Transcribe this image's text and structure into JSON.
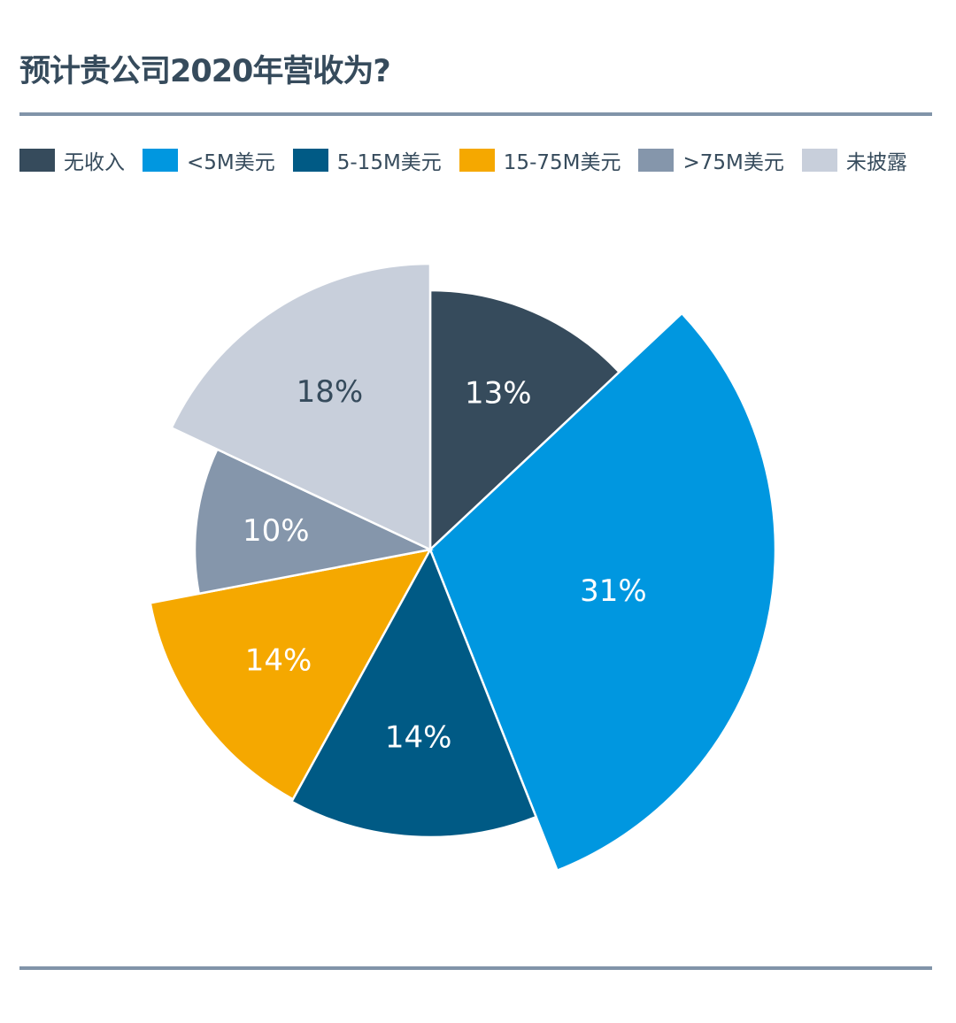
{
  "chart_data": {
    "type": "pie",
    "title": "预计贵公司2020年营收为?",
    "legend_position": "top",
    "categories": [
      "无收入",
      "<5M美元",
      "5-15M美元",
      "15-75M美元",
      ">75M美元",
      "未披露"
    ],
    "values": [
      13,
      31,
      14,
      14,
      10,
      18
    ],
    "data_labels": [
      "13%",
      "31%",
      "14%",
      "14%",
      "10%",
      "18%"
    ],
    "colors": [
      "#364b5c",
      "#0097e0",
      "#005a85",
      "#f5a800",
      "#8596ab",
      "#c8cfdb"
    ],
    "label_colors": [
      "#ffffff",
      "#ffffff",
      "#ffffff",
      "#ffffff",
      "#ffffff",
      "#364b5c"
    ]
  }
}
